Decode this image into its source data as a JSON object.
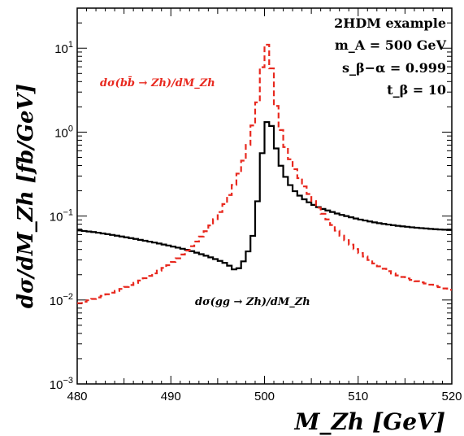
{
  "chart_data": {
    "type": "line",
    "title": "",
    "xlabel": "M_Zh [GeV]",
    "ylabel": "dσ/dM_Zh [fb/GeV]",
    "xlim": [
      480,
      520
    ],
    "ylim": [
      0.001,
      30
    ],
    "yscale": "log",
    "xticks": [
      480,
      490,
      500,
      510,
      520
    ],
    "xtick_labels": [
      "480",
      "490",
      "500",
      "510",
      "520"
    ],
    "yticks": [
      0.001,
      0.01,
      0.1,
      1,
      10
    ],
    "ytick_labels": [
      {
        "base": "10",
        "exp": "−3"
      },
      {
        "base": "10",
        "exp": "−2"
      },
      {
        "base": "10",
        "exp": "−1"
      },
      {
        "base": "10",
        "exp": "0"
      },
      {
        "base": "10",
        "exp": "1"
      }
    ],
    "grid": false,
    "info_box": [
      "2HDM example",
      "m_A = 500 GeV",
      "s_β−α = 0.999",
      "t_β = 10"
    ],
    "series": [
      {
        "name": "dσ(gg → Zh)/dM_Zh",
        "color": "#000000",
        "style": "solid-step",
        "x": [
          480,
          482,
          484,
          486,
          488,
          490,
          492,
          494,
          495,
          496,
          497,
          497.5,
          498,
          498.5,
          499,
          499.5,
          500,
          500.5,
          501,
          501.5,
          502,
          502.5,
          503,
          504,
          505,
          506,
          508,
          510,
          512,
          514,
          516,
          518,
          520
        ],
        "y": [
          0.068,
          0.064,
          0.059,
          0.054,
          0.049,
          0.044,
          0.039,
          0.033,
          0.03,
          0.027,
          0.022,
          0.026,
          0.032,
          0.045,
          0.075,
          0.3,
          1.05,
          1.65,
          0.85,
          0.48,
          0.33,
          0.26,
          0.21,
          0.165,
          0.14,
          0.124,
          0.105,
          0.092,
          0.083,
          0.077,
          0.073,
          0.07,
          0.068
        ]
      },
      {
        "name": "dσ(bb̄ → Zh)/dM_Zh",
        "color": "#e8281e",
        "style": "dashed-step",
        "x": [
          480,
          482,
          484,
          486,
          488,
          490,
          491,
          492,
          493,
          494,
          495,
          496,
          497,
          497.5,
          498,
          498.5,
          499,
          499.5,
          500,
          500.5,
          501,
          501.5,
          502,
          502.5,
          503,
          504,
          505,
          506,
          508,
          510,
          512,
          514,
          516,
          518,
          520
        ],
        "y": [
          0.009,
          0.0105,
          0.0125,
          0.0155,
          0.02,
          0.027,
          0.033,
          0.041,
          0.053,
          0.071,
          0.1,
          0.155,
          0.27,
          0.38,
          0.55,
          0.9,
          1.6,
          3.2,
          11.0,
          11.0,
          3.0,
          1.4,
          0.8,
          0.55,
          0.41,
          0.25,
          0.165,
          0.115,
          0.062,
          0.038,
          0.026,
          0.02,
          0.017,
          0.015,
          0.013
        ]
      }
    ],
    "annotations": [
      {
        "text": "dσ(bb̄ → Zh)/dM_Zh",
        "series": 1
      },
      {
        "text": "dσ(gg → Zh)/dM_Zh",
        "series": 0
      }
    ]
  }
}
